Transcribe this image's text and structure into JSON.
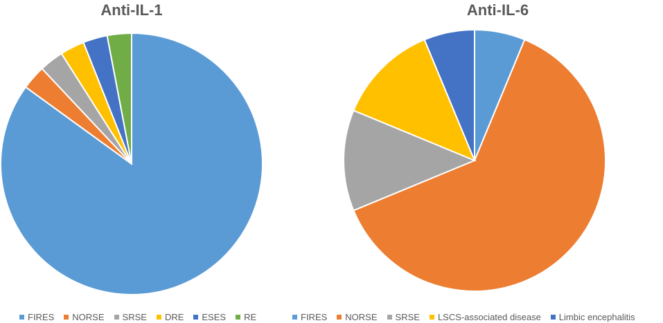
{
  "chart_data": [
    {
      "type": "pie",
      "title": "Anti-IL-1",
      "categories": [
        "FIRES",
        "NORSE",
        "SRSE",
        "DRE",
        "ESES",
        "RE"
      ],
      "values": [
        85,
        3,
        3,
        3,
        3,
        3
      ],
      "colors": [
        "#5B9BD5",
        "#ED7D31",
        "#A5A5A5",
        "#FFC000",
        "#4472C4",
        "#70AD47"
      ],
      "legend": "bottom"
    },
    {
      "type": "pie",
      "title": "Anti-IL-6",
      "categories": [
        "FIRES",
        "NORSE",
        "SRSE",
        "LSCS-associated disease",
        "Limbic encephalitis"
      ],
      "values": [
        6.25,
        62.5,
        12.5,
        12.5,
        6.25
      ],
      "colors": [
        "#5B9BD5",
        "#ED7D31",
        "#A5A5A5",
        "#FFC000",
        "#4472C4"
      ],
      "legend": "bottom"
    }
  ]
}
